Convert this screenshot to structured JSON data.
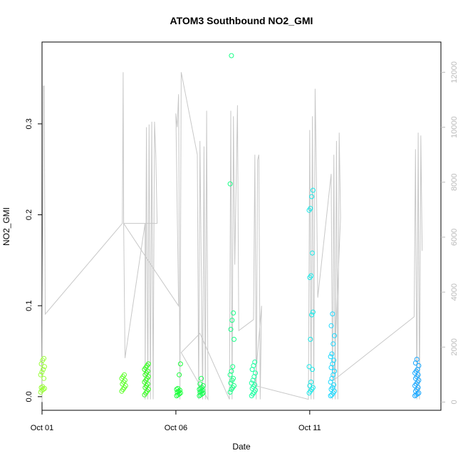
{
  "chart_data": {
    "type": "scatter",
    "title": "ATOM3 Southbound NO2_GMI",
    "xlabel": "Date",
    "ylabel": "NO2_GMI",
    "x_range": [
      0,
      14.9
    ],
    "y_range": [
      -0.015,
      0.39
    ],
    "y2_range": [
      -300,
      13100
    ],
    "x_ticks": [
      {
        "value": 0,
        "label": "Oct 01"
      },
      {
        "value": 5,
        "label": "Oct 06"
      },
      {
        "value": 10,
        "label": "Oct 11"
      }
    ],
    "y_ticks": [
      {
        "value": 0.0,
        "label": "0.0"
      },
      {
        "value": 0.1,
        "label": "0.1"
      },
      {
        "value": 0.2,
        "label": "0.2"
      },
      {
        "value": 0.3,
        "label": "0.3"
      }
    ],
    "y2_ticks": [
      {
        "value": 0,
        "label": "0"
      },
      {
        "value": 2000,
        "label": "2000"
      },
      {
        "value": 4000,
        "label": "4000"
      },
      {
        "value": 6000,
        "label": "6000"
      },
      {
        "value": 8000,
        "label": "8000"
      },
      {
        "value": 10000,
        "label": "10000"
      },
      {
        "value": 12000,
        "label": "12000"
      }
    ],
    "flights": [
      {
        "x": 0.02,
        "color": "#9aff3a",
        "values": [
          0.005,
          0.007,
          0.008,
          0.009,
          0.01,
          0.011,
          0.02,
          0.024,
          0.027,
          0.03,
          0.033,
          0.036,
          0.04,
          0.042
        ]
      },
      {
        "x": 3.05,
        "color": "#5dff2a",
        "values": [
          0.006,
          0.008,
          0.01,
          0.012,
          0.014,
          0.016,
          0.018,
          0.02,
          0.022,
          0.024
        ]
      },
      {
        "x": 3.9,
        "color": "#33ff1e",
        "values": [
          0.002,
          0.004,
          0.006,
          0.008,
          0.01,
          0.012,
          0.014,
          0.016,
          0.018,
          0.02,
          0.022,
          0.024,
          0.026,
          0.028,
          0.03,
          0.032,
          0.034,
          0.036
        ]
      },
      {
        "x": 5.1,
        "color": "#1aff3a",
        "values": [
          0.001,
          0.002,
          0.003,
          0.004,
          0.005,
          0.006,
          0.007,
          0.008,
          0.009,
          0.024,
          0.036
        ]
      },
      {
        "x": 5.95,
        "color": "#1aff55",
        "values": [
          0.001,
          0.002,
          0.003,
          0.004,
          0.005,
          0.006,
          0.007,
          0.008,
          0.009,
          0.01,
          0.012,
          0.014,
          0.02
        ]
      },
      {
        "x": 7.1,
        "color": "#1aff88",
        "values": [
          0.005,
          0.008,
          0.01,
          0.012,
          0.015,
          0.018,
          0.02,
          0.024,
          0.028,
          0.033,
          0.063,
          0.074,
          0.084,
          0.092,
          0.234,
          0.375
        ]
      },
      {
        "x": 7.9,
        "color": "#1affa0",
        "values": [
          0.001,
          0.003,
          0.005,
          0.007,
          0.009,
          0.011,
          0.013,
          0.015,
          0.018,
          0.022,
          0.026,
          0.03,
          0.034,
          0.038
        ]
      },
      {
        "x": 10.05,
        "color": "#1ae8e8",
        "values": [
          0.004,
          0.006,
          0.008,
          0.01,
          0.012,
          0.016,
          0.03,
          0.033,
          0.063,
          0.09,
          0.093,
          0.131,
          0.133,
          0.158,
          0.205,
          0.207,
          0.22,
          0.227
        ]
      },
      {
        "x": 10.85,
        "color": "#1ad8ff",
        "values": [
          0.001,
          0.002,
          0.004,
          0.006,
          0.008,
          0.01,
          0.013,
          0.016,
          0.02,
          0.024,
          0.028,
          0.032,
          0.036,
          0.04,
          0.044,
          0.047,
          0.058,
          0.067,
          0.078,
          0.091
        ]
      },
      {
        "x": 14.0,
        "color": "#1aa8ff",
        "values": [
          0.001,
          0.002,
          0.003,
          0.004,
          0.006,
          0.008,
          0.01,
          0.012,
          0.014,
          0.016,
          0.018,
          0.02,
          0.022,
          0.024,
          0.026,
          0.028,
          0.03,
          0.034,
          0.037,
          0.041
        ]
      }
    ],
    "altitude_series": {
      "color": "#c8c8c8",
      "points": [
        [
          0.0,
          0
        ],
        [
          0.02,
          5000
        ],
        [
          0.05,
          11500
        ],
        [
          0.08,
          11500
        ],
        [
          0.12,
          3200
        ],
        [
          3.0,
          6500
        ],
        [
          3.03,
          12000
        ],
        [
          3.05,
          6500
        ],
        [
          3.1,
          1600
        ],
        [
          3.85,
          6500
        ],
        [
          3.85,
          100
        ],
        [
          3.9,
          10000
        ],
        [
          3.95,
          100
        ],
        [
          4.0,
          10100
        ],
        [
          4.05,
          100
        ],
        [
          4.1,
          10200
        ],
        [
          4.15,
          100
        ],
        [
          4.2,
          10200
        ],
        [
          4.25,
          9000
        ],
        [
          4.3,
          6500
        ],
        [
          3.05,
          6500
        ],
        [
          4.2,
          4800
        ],
        [
          5.1,
          3500
        ],
        [
          5.0,
          10500
        ],
        [
          5.05,
          10000
        ],
        [
          5.1,
          11200
        ],
        [
          5.15,
          100
        ],
        [
          5.2,
          12000
        ],
        [
          5.8,
          9000
        ],
        [
          5.85,
          100
        ],
        [
          5.9,
          9500
        ],
        [
          6.0,
          100
        ],
        [
          6.05,
          9300
        ],
        [
          6.1,
          100
        ],
        [
          6.15,
          10600
        ],
        [
          6.2,
          100
        ],
        [
          5.2,
          1800
        ],
        [
          5.9,
          2500
        ],
        [
          7.0,
          100
        ],
        [
          7.05,
          10600
        ],
        [
          7.1,
          100
        ],
        [
          7.15,
          10400
        ],
        [
          7.2,
          5000
        ],
        [
          7.3,
          10800
        ],
        [
          7.35,
          2600
        ],
        [
          7.9,
          3000
        ],
        [
          7.95,
          9000
        ],
        [
          8.0,
          100
        ],
        [
          8.05,
          8800
        ],
        [
          8.1,
          9000
        ],
        [
          8.15,
          100
        ],
        [
          8.2,
          3500
        ],
        [
          7.95,
          600
        ],
        [
          9.95,
          100
        ],
        [
          10.0,
          9900
        ],
        [
          10.05,
          100
        ],
        [
          10.1,
          10400
        ],
        [
          10.15,
          100
        ],
        [
          10.2,
          11400
        ],
        [
          10.25,
          8200
        ],
        [
          10.3,
          3800
        ],
        [
          10.8,
          8300
        ],
        [
          10.85,
          100
        ],
        [
          10.9,
          9000
        ],
        [
          10.95,
          100
        ],
        [
          11.0,
          9500
        ],
        [
          11.05,
          100
        ],
        [
          11.1,
          9800
        ],
        [
          11.15,
          6700
        ],
        [
          10.9,
          800
        ],
        [
          13.9,
          3100
        ],
        [
          13.95,
          9200
        ],
        [
          14.0,
          100
        ],
        [
          14.05,
          9800
        ],
        [
          14.1,
          100
        ],
        [
          14.15,
          9700
        ],
        [
          14.2,
          5500
        ]
      ]
    }
  }
}
